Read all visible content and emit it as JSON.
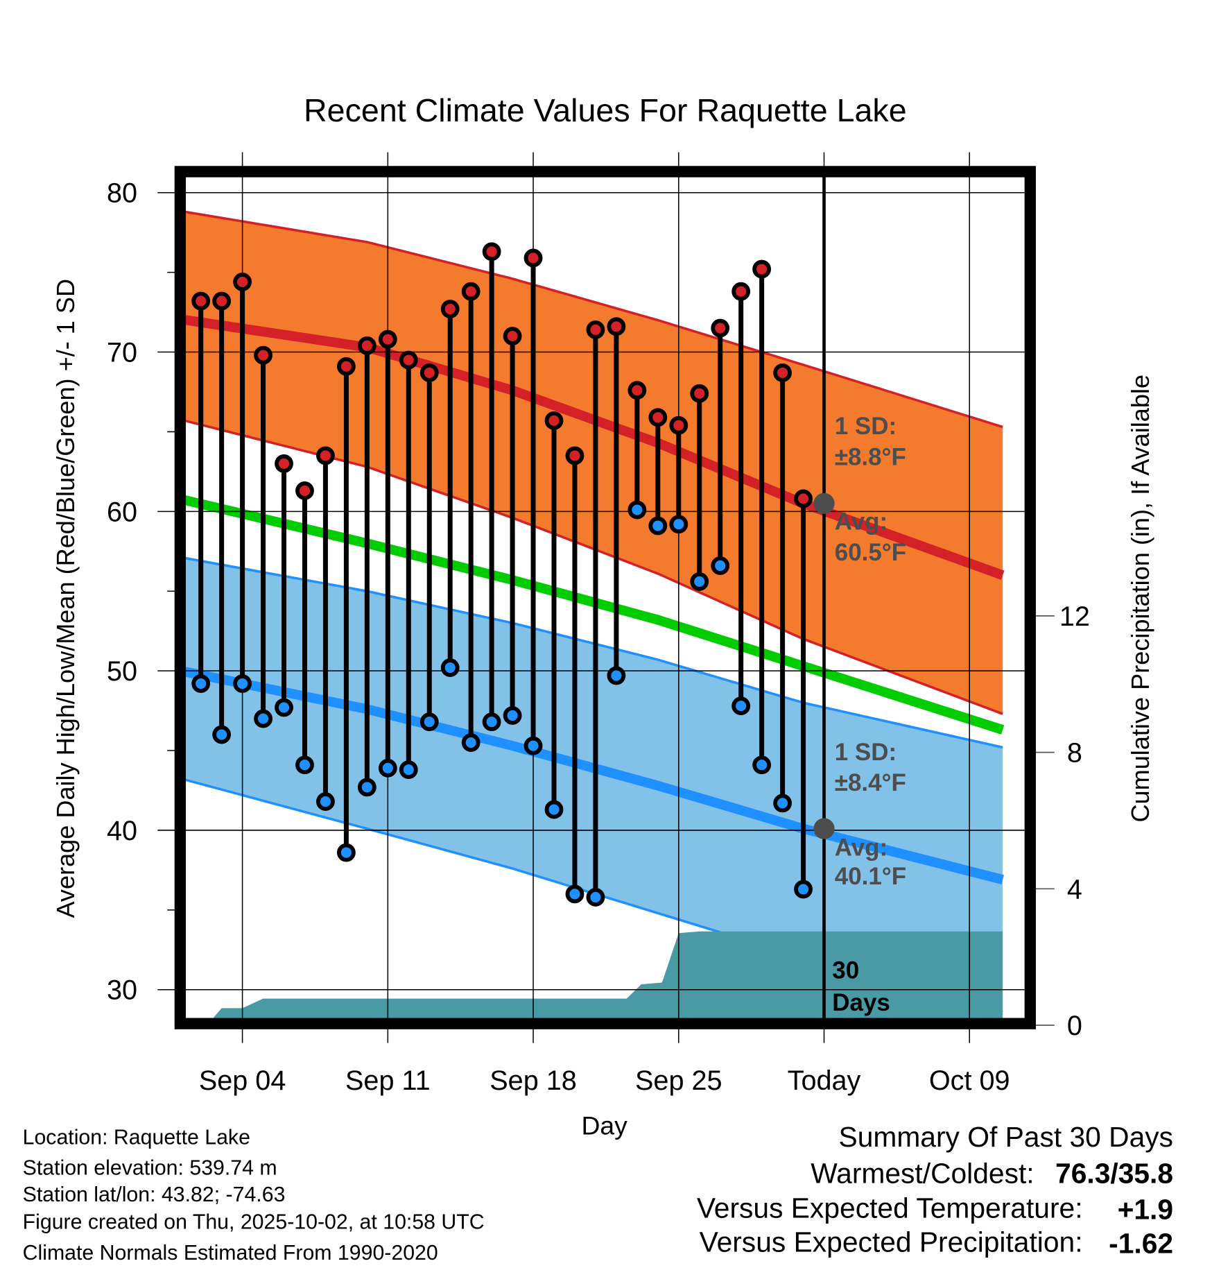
{
  "chart_data": {
    "type": "line",
    "title": "Recent Climate Values For Raquette Lake",
    "xlabel": "Day",
    "ylabel": "Average Daily High/Low/Mean (Red/Blue/Green) +/- 1 SD",
    "y2label": "Cumulative Precipitation (in), If Available",
    "ylim": [
      28.2,
      81
    ],
    "yticks": [
      30,
      40,
      50,
      60,
      70,
      80
    ],
    "y2lim": [
      0,
      12
    ],
    "y2ticks": [
      0,
      4,
      8,
      12
    ],
    "xlim_day_of_sep": [
      0.3,
      40.6
    ],
    "xticks": [
      {
        "day": 4,
        "label": "Sep 04"
      },
      {
        "day": 11,
        "label": "Sep 11"
      },
      {
        "day": 18,
        "label": "Sep 18"
      },
      {
        "day": 25,
        "label": "Sep 25"
      },
      {
        "day": 32,
        "label": "Today"
      },
      {
        "day": 39,
        "label": "Oct 09"
      }
    ],
    "today_day": 32,
    "grid": true,
    "observations": {
      "days": [
        2,
        3,
        4,
        5,
        6,
        7,
        8,
        9,
        10,
        11,
        12,
        13,
        14,
        15,
        16,
        17,
        18,
        19,
        20,
        21,
        22,
        23,
        24,
        25,
        26,
        27,
        28,
        29,
        30,
        31
      ],
      "high": [
        73.2,
        73.2,
        74.4,
        69.8,
        63.0,
        61.3,
        63.5,
        69.1,
        70.4,
        70.8,
        69.5,
        68.7,
        72.7,
        73.8,
        76.3,
        71.0,
        75.9,
        65.7,
        63.5,
        71.4,
        71.6,
        67.6,
        65.9,
        65.4,
        67.4,
        71.5,
        73.8,
        75.2,
        68.7,
        60.8
      ],
      "low": [
        49.2,
        46.0,
        49.2,
        47.0,
        47.7,
        44.1,
        41.8,
        38.6,
        42.7,
        43.9,
        43.8,
        46.8,
        50.2,
        45.5,
        46.8,
        47.2,
        45.3,
        41.3,
        36.0,
        35.8,
        49.7,
        60.1,
        59.1,
        59.2,
        55.6,
        56.6,
        47.8,
        44.1,
        41.7,
        36.3
      ]
    },
    "normals": {
      "days": [
        0.3,
        10,
        17,
        24,
        31,
        40.6
      ],
      "high_mean": [
        72.2,
        70.3,
        67.6,
        64.3,
        60.5,
        56.0
      ],
      "high_upper": [
        79.0,
        76.9,
        74.6,
        72.0,
        69.2,
        65.3
      ],
      "high_lower": [
        66.0,
        62.8,
        59.6,
        56.1,
        52.0,
        47.3
      ],
      "mean": [
        61.0,
        58.0,
        55.7,
        53.2,
        50.3,
        46.3
      ],
      "low_mean": [
        50.2,
        47.6,
        45.3,
        42.8,
        40.1,
        36.9
      ],
      "low_upper": [
        57.3,
        55.0,
        53.0,
        50.7,
        48.0,
        45.2
      ],
      "low_lower": [
        43.5,
        40.1,
        37.6,
        34.8,
        32.0,
        28.6
      ]
    },
    "precip_cumulative": [
      [
        0.3,
        0
      ],
      [
        2.3,
        0
      ],
      [
        3,
        0.5
      ],
      [
        4,
        0.5
      ],
      [
        5,
        0.78
      ],
      [
        22.5,
        0.78
      ],
      [
        23.2,
        1.2
      ],
      [
        24.2,
        1.25
      ],
      [
        25,
        2.7
      ],
      [
        26,
        2.75
      ],
      [
        40.6,
        2.75
      ]
    ],
    "annotations": {
      "high_sd_label": "1 SD:",
      "high_sd_value": "±8.8°F",
      "high_avg_label": "Avg:",
      "high_avg_value": "60.5°F",
      "low_sd_label": "1 SD:",
      "low_sd_value": "±8.4°F",
      "low_avg_label": "Avg:",
      "low_avg_value": "40.1°F",
      "window_num": "30",
      "window_unit": "Days"
    },
    "colors": {
      "high_band": "#f47a2e",
      "high_line": "#d42027",
      "mean_line": "#00cc00",
      "low_band": "#82c1e8",
      "low_line": "#1e90ff",
      "precip": "#4a9aa5",
      "annotation": "#4d4d4d"
    }
  },
  "footer": {
    "location": "Location: Raquette Lake",
    "elevation": "Station elevation: 539.74 m",
    "latlon": "Station lat/lon: 43.82; -74.63",
    "created": "Figure created on Thu, 2025-10-02, at 10:58 UTC",
    "normals": "Climate Normals Estimated From 1990-2020"
  },
  "summary": {
    "title": "Summary Of Past 30 Days",
    "warmest_coldest_label": "Warmest/Coldest:",
    "warmest_coldest_value": "76.3/35.8",
    "temp_label": "Versus Expected Temperature:",
    "temp_value": "+1.9",
    "temp_color": "#d42027",
    "precip_label": "Versus Expected Precipitation:",
    "precip_value": "-1.62",
    "precip_color": "#a0522d"
  }
}
